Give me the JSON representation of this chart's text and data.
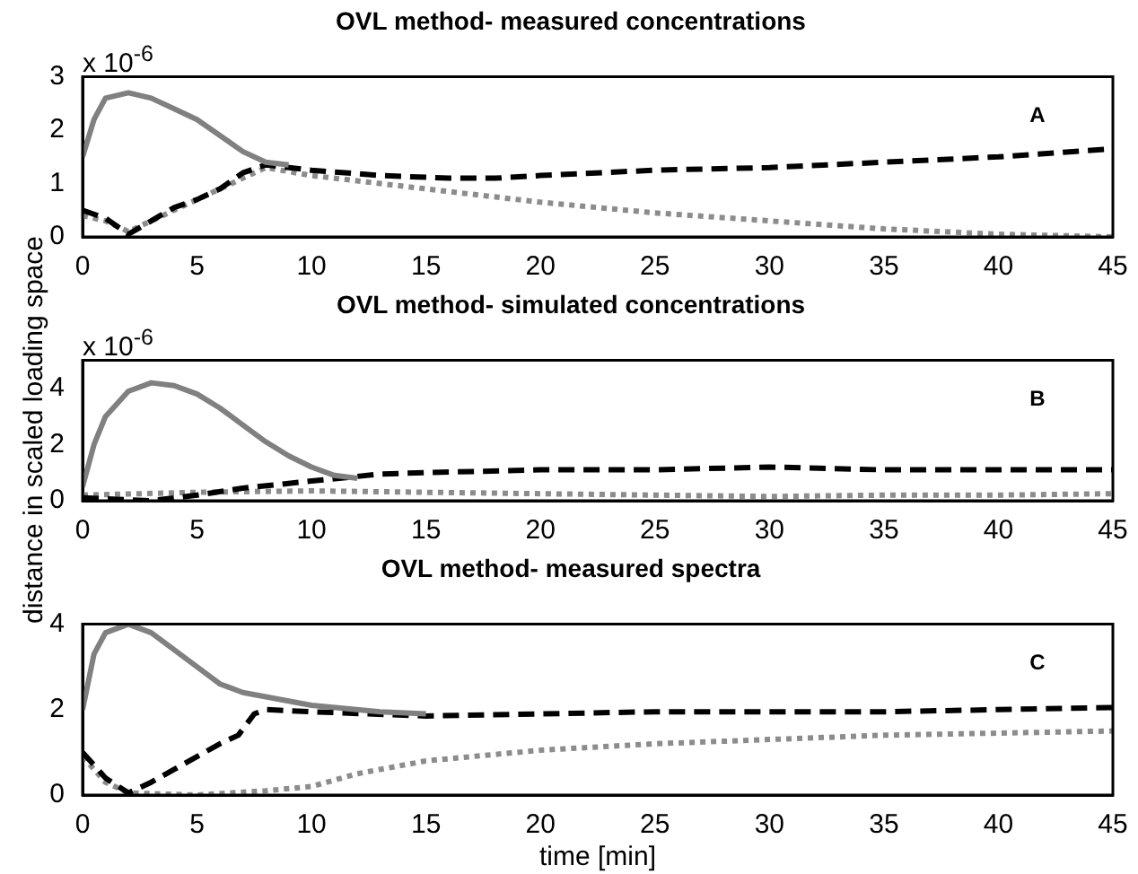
{
  "chart_data": [
    {
      "type": "line",
      "title": "OVL method- measured concentrations",
      "xlim": [
        0,
        45
      ],
      "xticks": [
        0,
        5,
        10,
        15,
        20,
        25,
        30,
        35,
        40,
        45
      ],
      "ylim": [
        0,
        3
      ],
      "yticks": [
        0,
        1,
        2,
        3
      ],
      "grid": false,
      "legend": false,
      "marker": "none",
      "annotations": [
        "x 10$^{-6}$",
        "A"
      ],
      "series": [
        {
          "color": "#808080",
          "line_style": "solid",
          "x": [
            0,
            0.5,
            1,
            2,
            3,
            4,
            5,
            6,
            7,
            8,
            9
          ],
          "values": [
            1.5,
            2.2,
            2.6,
            2.7,
            2.6,
            2.4,
            2.2,
            1.9,
            1.6,
            1.4,
            1.35
          ]
        },
        {
          "color": "#000000",
          "line_style": "dashed",
          "x": [
            0,
            1,
            2,
            3,
            4,
            5,
            6,
            7,
            8,
            10,
            13,
            16,
            18,
            20,
            25,
            30,
            35,
            40,
            45
          ],
          "values": [
            0.5,
            0.35,
            0.05,
            0.3,
            0.55,
            0.7,
            0.9,
            1.2,
            1.35,
            1.25,
            1.15,
            1.1,
            1.1,
            1.15,
            1.25,
            1.3,
            1.4,
            1.5,
            1.65
          ]
        },
        {
          "color": "#8c8c8c",
          "line_style": "dotted",
          "x": [
            0,
            1,
            2,
            3,
            5,
            7,
            8,
            10,
            15,
            20,
            25,
            30,
            35,
            40,
            45
          ],
          "values": [
            0.4,
            0.3,
            0.1,
            0.3,
            0.7,
            1.1,
            1.3,
            1.15,
            0.9,
            0.65,
            0.45,
            0.3,
            0.15,
            0.05,
            0
          ]
        }
      ]
    },
    {
      "type": "line",
      "title": "OVL method- simulated concentrations",
      "ylabel": "distance in scaled loading space",
      "xlim": [
        0,
        45
      ],
      "xticks": [
        0,
        5,
        10,
        15,
        20,
        25,
        30,
        35,
        40,
        45
      ],
      "ylim": [
        0,
        5
      ],
      "yticks": [
        0,
        2,
        4
      ],
      "grid": false,
      "legend": false,
      "marker": "none",
      "annotations": [
        "x 10$^{-6}$",
        "B"
      ],
      "series": [
        {
          "color": "#808080",
          "line_style": "solid",
          "x": [
            0,
            0.5,
            1,
            2,
            3,
            4,
            5,
            6,
            7,
            8,
            9,
            10,
            11,
            12
          ],
          "values": [
            0.5,
            2,
            3,
            3.9,
            4.2,
            4.1,
            3.8,
            3.3,
            2.7,
            2.1,
            1.6,
            1.2,
            0.9,
            0.8
          ]
        },
        {
          "color": "#000000",
          "line_style": "dashed",
          "x": [
            0,
            3,
            5,
            7,
            10,
            13,
            15,
            20,
            25,
            30,
            35,
            40,
            45
          ],
          "values": [
            0.1,
            0,
            0.2,
            0.45,
            0.7,
            0.95,
            1,
            1.1,
            1.1,
            1.2,
            1.1,
            1.1,
            1.1
          ]
        },
        {
          "color": "#8c8c8c",
          "line_style": "dotted",
          "x": [
            0,
            5,
            10,
            15,
            20,
            25,
            30,
            35,
            40,
            45
          ],
          "values": [
            0.2,
            0.3,
            0.35,
            0.3,
            0.25,
            0.2,
            0.15,
            0.2,
            0.2,
            0.25
          ]
        }
      ]
    },
    {
      "type": "line",
      "title": "OVL method- measured spectra",
      "xlabel": "time [min]",
      "xlim": [
        0,
        45
      ],
      "xticks": [
        0,
        5,
        10,
        15,
        20,
        25,
        30,
        35,
        40,
        45
      ],
      "ylim": [
        0,
        4
      ],
      "yticks": [
        0,
        2,
        4
      ],
      "grid": false,
      "legend": false,
      "marker": "none",
      "annotations": [
        "C"
      ],
      "series": [
        {
          "color": "#808080",
          "line_style": "solid",
          "x": [
            0,
            0.5,
            1,
            2,
            3,
            4,
            5,
            6,
            7,
            8,
            10,
            13,
            15
          ],
          "values": [
            2,
            3.3,
            3.8,
            4,
            3.8,
            3.4,
            3,
            2.6,
            2.4,
            2.3,
            2.1,
            1.95,
            1.9
          ]
        },
        {
          "color": "#000000",
          "line_style": "dashed",
          "x": [
            0,
            1,
            2,
            3,
            4,
            5,
            6,
            6.8,
            7.5,
            8,
            10,
            15,
            20,
            25,
            30,
            35,
            40,
            45
          ],
          "values": [
            1,
            0.4,
            0.05,
            0.3,
            0.6,
            0.9,
            1.2,
            1.4,
            1.9,
            2,
            1.95,
            1.85,
            1.9,
            1.95,
            1.95,
            1.95,
            2,
            2.05
          ]
        },
        {
          "color": "#8c8c8c",
          "line_style": "dotted",
          "x": [
            0,
            1,
            2,
            5,
            8,
            10,
            12,
            15,
            20,
            25,
            30,
            35,
            40,
            45
          ],
          "values": [
            0.9,
            0.3,
            0.05,
            0,
            0.1,
            0.2,
            0.5,
            0.8,
            1.05,
            1.2,
            1.3,
            1.4,
            1.45,
            1.5
          ]
        }
      ]
    }
  ]
}
